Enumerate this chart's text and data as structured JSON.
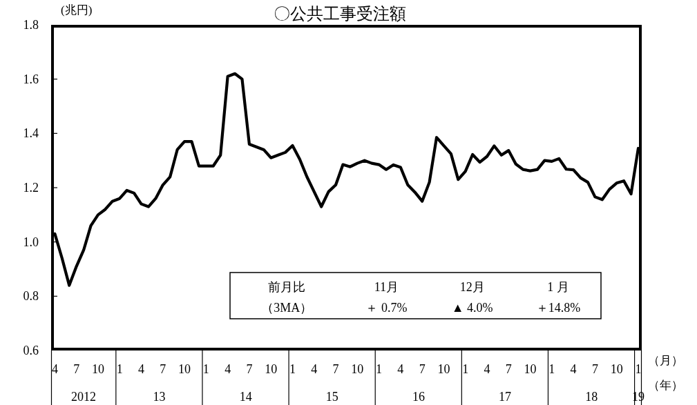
{
  "chart_data": {
    "type": "line",
    "title": "〇公共工事受注額",
    "ylabel": "(兆円)",
    "xlabel": "（月）",
    "x2label": "（年）",
    "x": [
      "2012-04",
      "2012-05",
      "2012-06",
      "2012-07",
      "2012-08",
      "2012-09",
      "2012-10",
      "2012-11",
      "2012-12",
      "2013-01",
      "2013-02",
      "2013-03",
      "2013-04",
      "2013-05",
      "2013-06",
      "2013-07",
      "2013-08",
      "2013-09",
      "2013-10",
      "2013-11",
      "2013-12",
      "2014-01",
      "2014-02",
      "2014-03",
      "2014-04",
      "2014-05",
      "2014-06",
      "2014-07",
      "2014-08",
      "2014-09",
      "2014-10",
      "2014-11",
      "2014-12",
      "2015-01",
      "2015-02",
      "2015-03",
      "2015-04",
      "2015-05",
      "2015-06",
      "2015-07",
      "2015-08",
      "2015-09",
      "2015-10",
      "2015-11",
      "2015-12",
      "2016-01",
      "2016-02",
      "2016-03",
      "2016-04",
      "2016-05",
      "2016-06",
      "2016-07",
      "2016-08",
      "2016-09",
      "2016-10",
      "2016-11",
      "2016-12",
      "2017-01",
      "2017-02",
      "2017-03",
      "2017-04",
      "2017-05",
      "2017-06",
      "2017-07",
      "2017-08",
      "2017-09",
      "2017-10",
      "2017-11",
      "2017-12",
      "2018-01",
      "2018-02",
      "2018-03",
      "2018-04",
      "2018-05",
      "2018-06",
      "2018-07",
      "2018-08",
      "2018-09",
      "2018-10",
      "2018-11",
      "2018-12",
      "2019-01"
    ],
    "series": [
      {
        "color": "#000000",
        "values": [
          1.03,
          0.94,
          0.84,
          0.91,
          0.97,
          1.06,
          1.1,
          1.12,
          1.15,
          1.16,
          1.19,
          1.18,
          1.14,
          1.13,
          1.16,
          1.21,
          1.24,
          1.34,
          1.37,
          1.37,
          1.28,
          1.28,
          1.28,
          1.32,
          1.61,
          1.62,
          1.6,
          1.36,
          1.35,
          1.34,
          1.31,
          1.32,
          1.33,
          1.355,
          1.305,
          1.24,
          1.185,
          1.13,
          1.185,
          1.21,
          1.285,
          1.277,
          1.29,
          1.3,
          1.29,
          1.285,
          1.267,
          1.284,
          1.275,
          1.21,
          1.183,
          1.15,
          1.22,
          1.385,
          1.355,
          1.325,
          1.23,
          1.26,
          1.322,
          1.294,
          1.315,
          1.354,
          1.32,
          1.337,
          1.287,
          1.267,
          1.262,
          1.267,
          1.3,
          1.297,
          1.307,
          1.268,
          1.266,
          1.236,
          1.22,
          1.166,
          1.156,
          1.194,
          1.217,
          1.225,
          1.177,
          1.345
        ]
      }
    ],
    "xlim": [
      "2012-03-16",
      "2019-01-16"
    ],
    "xticks": [
      {
        "value": "2012-04",
        "label": "4"
      },
      {
        "value": "2012-07",
        "label": "7"
      },
      {
        "value": "2012-10",
        "label": "10"
      },
      {
        "value": "2012-12-16",
        "label": null
      },
      {
        "value": "2013-01",
        "label": "1"
      },
      {
        "value": "2013-04",
        "label": "4"
      },
      {
        "value": "2013-07",
        "label": "7"
      },
      {
        "value": "2013-10",
        "label": "10"
      },
      {
        "value": "2013-12-16",
        "label": null
      },
      {
        "value": "2014-01",
        "label": "1"
      },
      {
        "value": "2014-04",
        "label": "4"
      },
      {
        "value": "2014-07",
        "label": "7"
      },
      {
        "value": "2014-10",
        "label": "10"
      },
      {
        "value": "2014-12-16",
        "label": null
      },
      {
        "value": "2015-01",
        "label": "1"
      },
      {
        "value": "2015-04",
        "label": "4"
      },
      {
        "value": "2015-07",
        "label": "7"
      },
      {
        "value": "2015-10",
        "label": "10"
      },
      {
        "value": "2015-12-16",
        "label": null
      },
      {
        "value": "2016-01",
        "label": "1"
      },
      {
        "value": "2016-04",
        "label": "4"
      },
      {
        "value": "2016-07",
        "label": "7"
      },
      {
        "value": "2016-10",
        "label": "10"
      },
      {
        "value": "2016-12-16",
        "label": null
      },
      {
        "value": "2017-01",
        "label": "1"
      },
      {
        "value": "2017-04",
        "label": "4"
      },
      {
        "value": "2017-07",
        "label": "7"
      },
      {
        "value": "2017-10",
        "label": "10"
      },
      {
        "value": "2017-12-16",
        "label": null
      },
      {
        "value": "2018-01",
        "label": "1"
      },
      {
        "value": "2018-04",
        "label": "4"
      },
      {
        "value": "2018-07",
        "label": "7"
      },
      {
        "value": "2018-10",
        "label": "10"
      },
      {
        "value": "2018-12-16",
        "label": null
      },
      {
        "value": "2019-01",
        "label": "1"
      }
    ],
    "x2lim": [
      "2012-03-16",
      "2019-01-16"
    ],
    "x2ticks": [
      {
        "value": "2012-08-01",
        "label": "2012"
      },
      {
        "value": "2013-06-16",
        "label": "13"
      },
      {
        "value": "2014-06-16",
        "label": "14"
      },
      {
        "value": "2015-06-16",
        "label": "15"
      },
      {
        "value": "2016-06-16",
        "label": "16"
      },
      {
        "value": "2017-06-16",
        "label": "17"
      },
      {
        "value": "2018-06-16",
        "label": "18"
      },
      {
        "value": "2019-01-01",
        "label": "19"
      }
    ],
    "ylim": [
      0.6,
      1.8
    ],
    "yticks": [
      0.6,
      0.8,
      {
        "value": 1,
        "label": "1.0"
      },
      1.2,
      1.4,
      1.6,
      1.8
    ],
    "annotations": [
      "前月比",
      "（3MA）",
      "11月",
      "＋ 0.7%",
      "12月",
      "▲ 4.0%",
      "1 月",
      "＋14.8%"
    ]
  }
}
